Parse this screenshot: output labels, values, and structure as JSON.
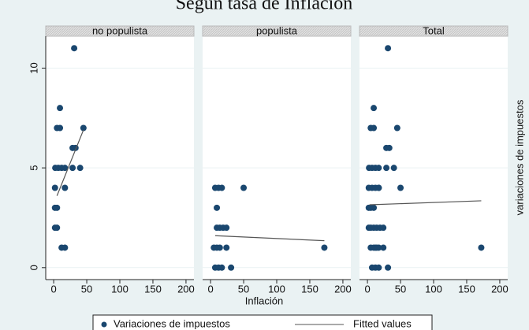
{
  "figure": {
    "title": "Según tasa de Inflación",
    "x_label": "Inflación",
    "y_label": "variaciones de impuestos"
  },
  "chart_data": [
    {
      "type": "scatter",
      "panel_title": "no populista",
      "xlim": [
        -12,
        212
      ],
      "ylim": [
        -0.6,
        11.6
      ],
      "xticks": [
        0,
        50,
        100,
        150,
        200
      ],
      "yticks": [
        0,
        5,
        10
      ],
      "series": [
        {
          "name": "Variaciones de impuestos",
          "mark": "dot",
          "color": "#1a476f",
          "x": [
            31,
            9.5,
            5,
            9.5,
            45,
            28.6,
            33,
            2.4,
            7,
            12,
            17,
            28.6,
            40,
            2,
            17,
            2,
            5,
            2,
            5,
            12,
            17
          ],
          "values": [
            11,
            8,
            7,
            7,
            7,
            6,
            6,
            5,
            5,
            5,
            5,
            5,
            5,
            4,
            4,
            3,
            3,
            2,
            2,
            1,
            1
          ]
        },
        {
          "name": "Fitted values",
          "mark": "line",
          "color": "#555555",
          "x": [
            5,
            45
          ],
          "values": [
            3.6,
            6.9
          ]
        }
      ]
    },
    {
      "type": "scatter",
      "panel_title": "populista",
      "xlim": [
        -12,
        212
      ],
      "ylim": [
        -0.6,
        11.6
      ],
      "xticks": [
        0,
        50,
        100,
        150,
        200
      ],
      "yticks": [
        0,
        5,
        10
      ],
      "series": [
        {
          "name": "Variaciones de impuestos",
          "mark": "dot",
          "color": "#1a476f",
          "x": [
            7,
            12,
            17,
            50,
            9.5,
            9.5,
            14,
            19,
            24,
            5,
            9.5,
            14,
            24,
            172,
            7,
            12,
            17,
            31
          ],
          "values": [
            4,
            4,
            4,
            4,
            3,
            2,
            2,
            2,
            2,
            1,
            1,
            1,
            1,
            1,
            0,
            0,
            0,
            0
          ]
        },
        {
          "name": "Fitted values",
          "mark": "line",
          "color": "#555555",
          "x": [
            7,
            172
          ],
          "values": [
            1.6,
            1.35
          ]
        }
      ]
    },
    {
      "type": "scatter",
      "panel_title": "Total",
      "xlim": [
        -12,
        212
      ],
      "ylim": [
        -0.6,
        11.6
      ],
      "xticks": [
        0,
        50,
        100,
        150,
        200
      ],
      "yticks": [
        0,
        5,
        10
      ],
      "series": [
        {
          "name": "Variaciones de impuestos",
          "mark": "dot",
          "color": "#1a476f",
          "x": [
            31,
            9.5,
            5,
            9.5,
            45,
            28.6,
            33,
            2.4,
            7,
            12,
            17,
            28.6,
            40,
            2,
            17,
            2,
            5,
            2,
            5,
            12,
            17,
            7,
            12,
            17,
            50,
            9.5,
            9.5,
            14,
            19,
            24,
            5,
            9.5,
            14,
            24,
            172,
            7,
            12,
            17,
            31
          ],
          "values": [
            11,
            8,
            7,
            7,
            7,
            6,
            6,
            5,
            5,
            5,
            5,
            5,
            5,
            4,
            4,
            3,
            3,
            2,
            2,
            1,
            1,
            4,
            4,
            4,
            4,
            3,
            2,
            2,
            2,
            2,
            1,
            1,
            1,
            1,
            1,
            0,
            0,
            0,
            0
          ]
        },
        {
          "name": "Fitted values",
          "mark": "line",
          "color": "#555555",
          "x": [
            3,
            172
          ],
          "values": [
            3.15,
            3.35
          ]
        }
      ]
    }
  ]
}
